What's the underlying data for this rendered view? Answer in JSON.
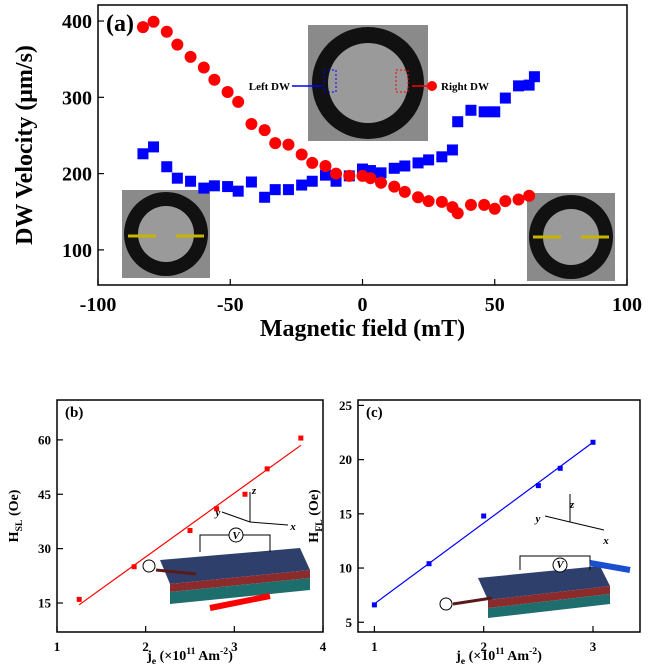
{
  "chart_data": [
    {
      "type": "scatter",
      "panel": "(a)",
      "xlabel": "Magnetic field (mT)",
      "ylabel": "DW Velocity (μm/s)",
      "xlim": [
        -100,
        100
      ],
      "xticks": [
        -100,
        -50,
        0,
        50,
        100
      ],
      "ylim": [
        54,
        421
      ],
      "yticks": [
        100,
        200,
        300,
        400
      ],
      "series": [
        {
          "name": "Left DW",
          "color": "#0000ff",
          "marker": "square",
          "x": [
            -83,
            -79,
            -74,
            -70,
            -65,
            -60,
            -56,
            -51,
            -47,
            -42,
            -37,
            -33,
            -28,
            -23,
            -19,
            -14,
            -10,
            -5,
            0,
            3,
            7,
            12,
            16,
            21,
            25,
            30,
            34,
            36,
            41,
            46,
            50,
            54,
            59,
            63,
            65
          ],
          "values": [
            226,
            235,
            209,
            194,
            190,
            181,
            184,
            183,
            177,
            189,
            169,
            179,
            179,
            185,
            190,
            198,
            190,
            197,
            206,
            204,
            201,
            207,
            210,
            214,
            218,
            222,
            231,
            268,
            283,
            281,
            281,
            299,
            315,
            316,
            327
          ]
        },
        {
          "name": "Right DW",
          "color": "#ff0000",
          "marker": "circle",
          "x": [
            -83,
            -79,
            -74,
            -70,
            -65,
            -60,
            -56,
            -51,
            -47,
            -42,
            -37,
            -33,
            -28,
            -23,
            -19,
            -14,
            -10,
            -5,
            0,
            3,
            7,
            12,
            16,
            21,
            25,
            30,
            34,
            36,
            41,
            46,
            50,
            54,
            59,
            63
          ],
          "values": [
            392,
            399,
            386,
            369,
            353,
            339,
            323,
            307,
            294,
            265,
            257,
            240,
            238,
            225,
            214,
            210,
            200,
            197,
            197,
            194,
            188,
            183,
            176,
            169,
            164,
            163,
            156,
            148,
            159,
            159,
            154,
            164,
            166,
            171
          ]
        }
      ]
    },
    {
      "type": "scatter",
      "panel": "(b)",
      "xlabel": [
        "j",
        "e",
        " (×10",
        "11",
        " Am",
        "-2",
        ")"
      ],
      "ylabel": [
        "H",
        "SL",
        " (Oe)"
      ],
      "xlim": [
        1,
        4
      ],
      "xticks": [
        1,
        2,
        3,
        4
      ],
      "ylim": [
        7,
        71
      ],
      "yticks": [
        15,
        30,
        45,
        60
      ],
      "series": [
        {
          "color": "#ff0000",
          "marker": "small-square",
          "x": [
            1.25,
            1.87,
            2.5,
            2.8,
            3.12,
            3.37,
            3.75
          ],
          "values": [
            16,
            25,
            35,
            41,
            45,
            52,
            60.5
          ]
        }
      ],
      "fit": {
        "color": "#ff0000",
        "x": [
          1.25,
          3.75
        ],
        "values": [
          14.5,
          58.5
        ]
      },
      "annotations": [
        "z",
        "y",
        "x",
        "V"
      ]
    },
    {
      "type": "scatter",
      "panel": "(c)",
      "xlabel": [
        "j",
        "e",
        " (×10",
        "11",
        " Am",
        "-2",
        ")"
      ],
      "ylabel": [
        "H",
        "FL",
        " (Oe)"
      ],
      "xlim": [
        0.85,
        3.43
      ],
      "xticks": [
        1,
        2,
        3
      ],
      "ylim": [
        4.1,
        25.5
      ],
      "yticks": [
        5,
        10,
        15,
        20,
        25
      ],
      "series": [
        {
          "color": "#0000ff",
          "marker": "small-square",
          "x": [
            1,
            1.5,
            2,
            2.5,
            2.7,
            3
          ],
          "values": [
            6.6,
            10.4,
            14.8,
            17.6,
            19.2,
            21.6
          ]
        }
      ],
      "fit": {
        "color": "#0000ff",
        "x": [
          1,
          3
        ],
        "values": [
          6.7,
          21.6
        ]
      },
      "annotations": [
        "z",
        "y",
        "x",
        "V"
      ]
    }
  ]
}
